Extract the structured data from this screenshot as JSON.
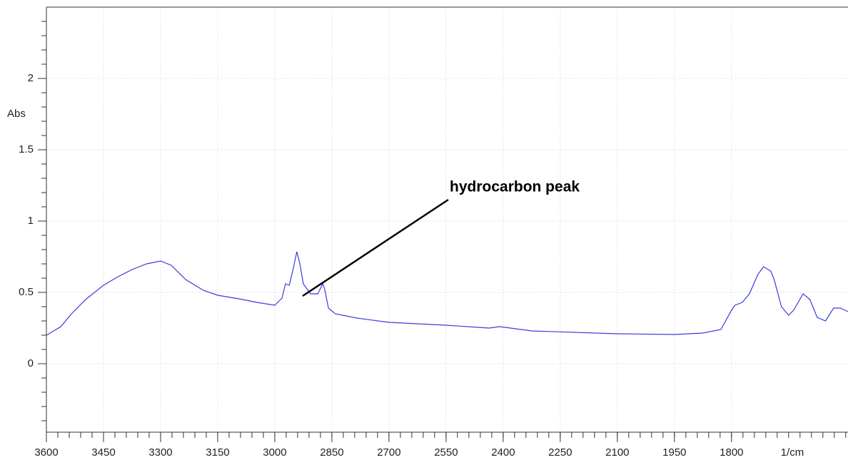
{
  "chart_data": {
    "type": "line",
    "y_label": "Abs",
    "x_label": "1/cm",
    "annotation": "hydrocarbon peak",
    "x": [
      3600,
      3562,
      3534,
      3497,
      3450,
      3412,
      3375,
      3337,
      3300,
      3272,
      3234,
      3188,
      3150,
      3094,
      3047,
      3000,
      2981,
      2972,
      2962,
      2953,
      2942,
      2934,
      2925,
      2906,
      2887,
      2874,
      2869,
      2859,
      2841,
      2784,
      2700,
      2550,
      2437,
      2409,
      2325,
      2100,
      1950,
      1875,
      1828,
      1800,
      1791,
      1772,
      1753,
      1731,
      1716,
      1697,
      1688,
      1669,
      1650,
      1637,
      1612,
      1594,
      1575,
      1553,
      1532,
      1514,
      1494
    ],
    "series": [
      {
        "color": "#3b3bdc",
        "values": [
          0.2,
          0.26,
          0.35,
          0.45,
          0.55,
          0.61,
          0.66,
          0.7,
          0.72,
          0.69,
          0.59,
          0.515,
          0.48,
          0.455,
          0.43,
          0.41,
          0.46,
          0.56,
          0.55,
          0.65,
          0.785,
          0.7,
          0.56,
          0.49,
          0.49,
          0.56,
          0.525,
          0.39,
          0.35,
          0.32,
          0.29,
          0.27,
          0.25,
          0.26,
          0.23,
          0.21,
          0.205,
          0.215,
          0.24,
          0.375,
          0.41,
          0.43,
          0.49,
          0.625,
          0.68,
          0.65,
          0.59,
          0.4,
          0.34,
          0.375,
          0.49,
          0.45,
          0.325,
          0.3,
          0.39,
          0.39,
          0.365
        ]
      }
    ],
    "xlim": [
      3600,
      1494
    ],
    "ylim": [
      -0.48,
      2.5
    ],
    "xticks": [
      3600,
      3450,
      3300,
      3150,
      3000,
      2850,
      2700,
      2550,
      2400,
      2250,
      2100,
      1950,
      1800
    ],
    "yticks": [
      0,
      0.5,
      1,
      1.5,
      2
    ],
    "grid": true
  }
}
